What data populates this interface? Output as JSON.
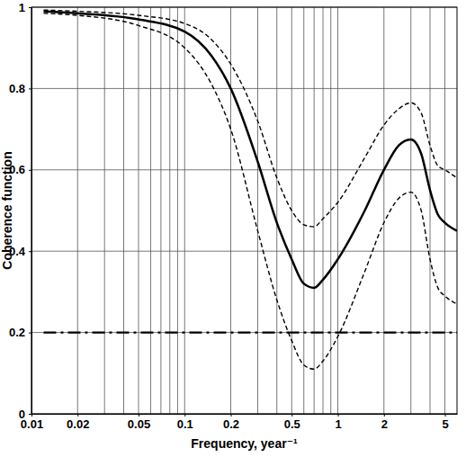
{
  "chart_data": {
    "type": "line",
    "x_label": "Frequency, year⁻¹",
    "y_label": "Coherence function",
    "x": [
      0.012,
      0.02,
      0.05,
      0.1,
      0.15,
      0.2,
      0.3,
      0.4,
      0.5,
      0.6,
      0.7,
      0.8,
      1,
      1.5,
      2,
      2.5,
      3,
      3.5,
      4,
      4.5,
      5,
      6
    ],
    "series": [
      {
        "color": "#000000",
        "line_style": "solid",
        "values": [
          0.99,
          0.985,
          0.97,
          0.94,
          0.88,
          0.8,
          0.62,
          0.47,
          0.38,
          0.32,
          0.31,
          0.33,
          0.38,
          0.5,
          0.6,
          0.66,
          0.675,
          0.64,
          0.55,
          0.49,
          0.47,
          0.45
        ]
      },
      {
        "color": "#000000",
        "line_style": "dashed",
        "values": [
          0.993,
          0.99,
          0.98,
          0.96,
          0.92,
          0.86,
          0.72,
          0.58,
          0.5,
          0.465,
          0.46,
          0.48,
          0.52,
          0.63,
          0.71,
          0.75,
          0.765,
          0.74,
          0.66,
          0.61,
          0.6,
          0.58
        ]
      },
      {
        "color": "#000000",
        "line_style": "dashed",
        "values": [
          0.985,
          0.98,
          0.955,
          0.9,
          0.81,
          0.7,
          0.45,
          0.28,
          0.18,
          0.12,
          0.11,
          0.13,
          0.19,
          0.35,
          0.47,
          0.53,
          0.545,
          0.5,
          0.38,
          0.31,
          0.29,
          0.27
        ]
      },
      {
        "color": "#000000",
        "line_style": "dashdot",
        "values": [
          0.2,
          0.2,
          0.2,
          0.2,
          0.2,
          0.2,
          0.2,
          0.2,
          0.2,
          0.2,
          0.2,
          0.2,
          0.2,
          0.2,
          0.2,
          0.2,
          0.2,
          0.2,
          0.2,
          0.2,
          0.2,
          0.2
        ]
      }
    ],
    "log": "x",
    "grid": true,
    "xlim": [
      0.01,
      6
    ],
    "xticks": [
      0.01,
      0.02,
      0.05,
      0.1,
      0.2,
      0.5,
      1,
      2,
      5
    ],
    "x_minor_ticks": [
      0.03,
      0.04,
      0.06,
      0.07,
      0.08,
      0.09,
      0.3,
      0.4,
      0.6,
      0.7,
      0.8,
      0.9,
      3,
      4
    ],
    "ylim": [
      0,
      1
    ],
    "yticks": [
      0,
      0.2,
      0.4,
      0.6,
      0.8,
      1
    ]
  }
}
